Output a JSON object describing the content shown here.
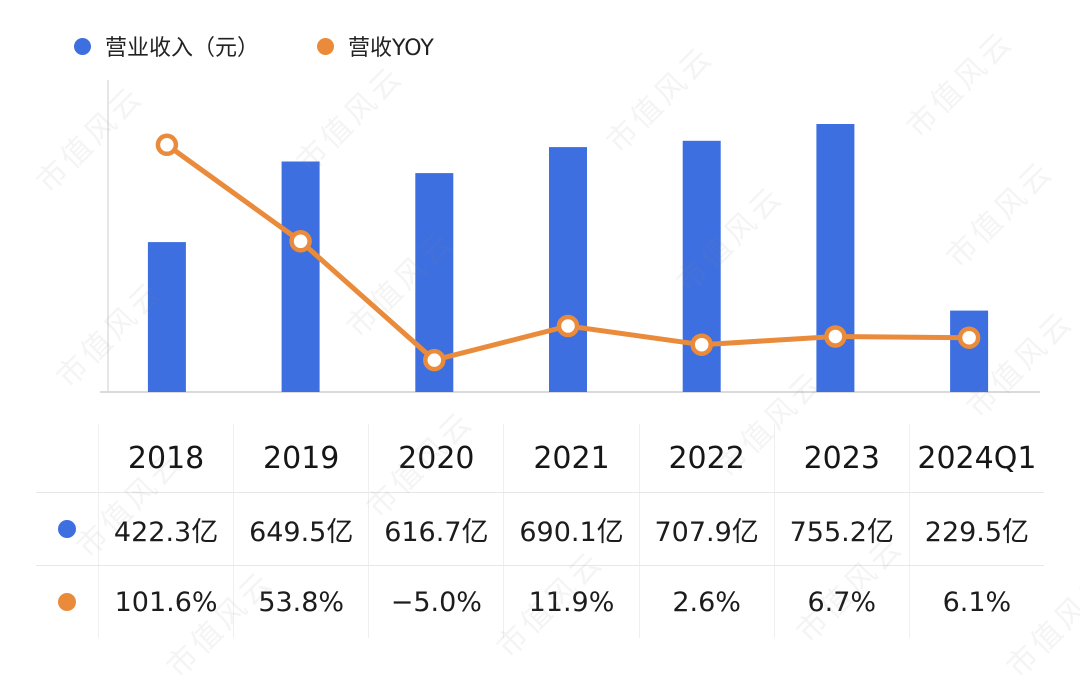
{
  "legend": {
    "items": [
      {
        "label": "营业收入（元）",
        "color": "#3d6fe0"
      },
      {
        "label": "营收YOY",
        "color": "#ea8b3c"
      }
    ]
  },
  "watermark": {
    "text": "市值风云"
  },
  "chart_data": {
    "type": "bar+line",
    "title": "",
    "categories": [
      "2018",
      "2019",
      "2020",
      "2021",
      "2022",
      "2023",
      "2024Q1"
    ],
    "series": [
      {
        "name": "营业收入（元）",
        "type": "bar",
        "unit": "亿",
        "color": "#3d6fe0",
        "values": [
          422.3,
          649.5,
          616.7,
          690.1,
          707.9,
          755.2,
          229.5
        ]
      },
      {
        "name": "营收YOY",
        "type": "line",
        "unit": "%",
        "color": "#ea8b3c",
        "marker": "open-circle",
        "values": [
          101.6,
          53.8,
          -5.0,
          11.9,
          2.6,
          6.7,
          6.1
        ]
      }
    ],
    "legend_position": "top-left",
    "grid": false,
    "axis_labels_shown": false
  },
  "table": {
    "headers": [
      "2018",
      "2019",
      "2020",
      "2021",
      "2022",
      "2023",
      "2024Q1"
    ],
    "rows": [
      {
        "name": "revenue-row",
        "dot_name": "revenue-row-dot",
        "dot_color": "#3d6fe0",
        "cells": [
          "422.3亿",
          "649.5亿",
          "616.7亿",
          "690.1亿",
          "707.9亿",
          "755.2亿",
          "229.5亿"
        ]
      },
      {
        "name": "yoy-row",
        "dot_name": "yoy-row-dot",
        "dot_color": "#ea8b3c",
        "cells": [
          "101.6%",
          "53.8%",
          "−5.0%",
          "11.9%",
          "2.6%",
          "6.7%",
          "6.1%"
        ]
      }
    ]
  }
}
